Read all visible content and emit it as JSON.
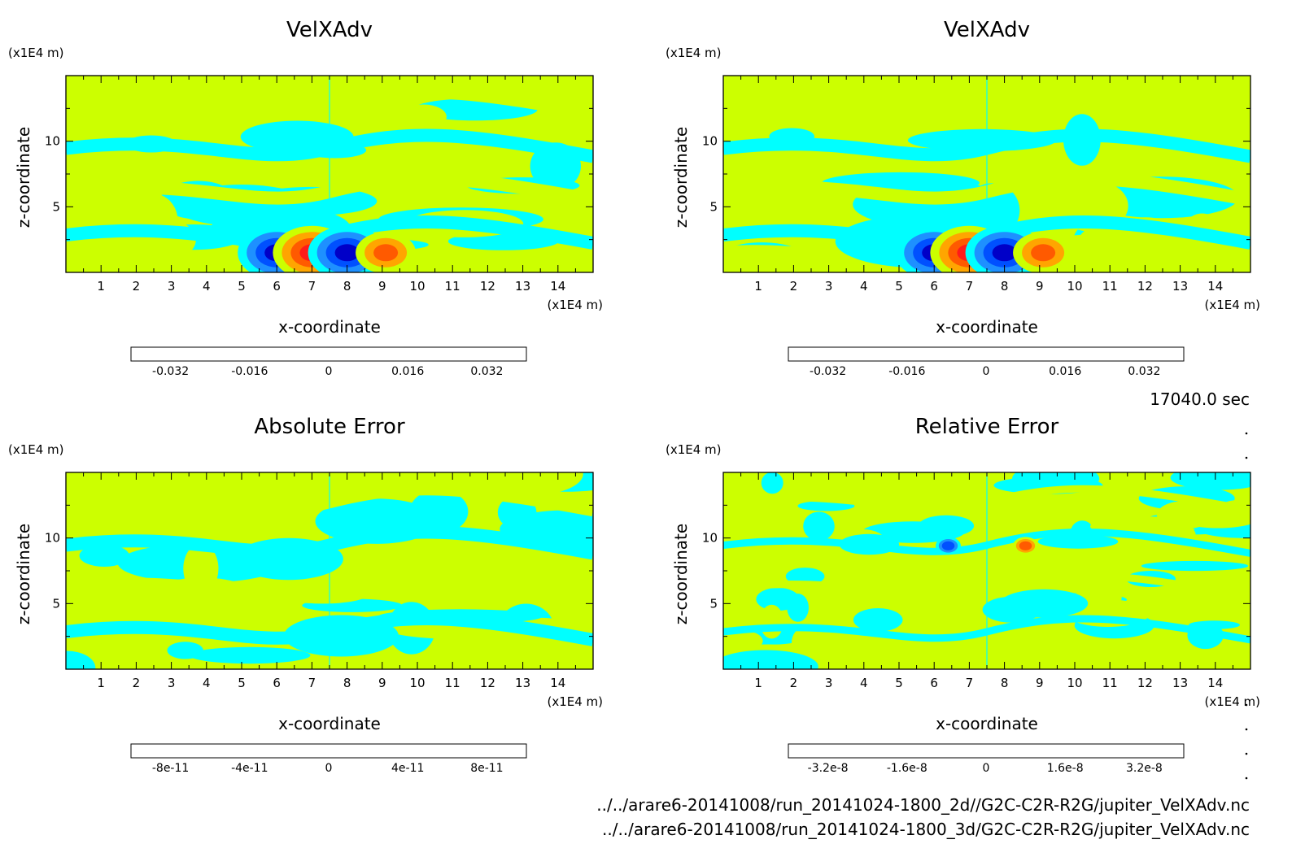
{
  "figure": {
    "time_label": "17040.0 sec",
    "files": [
      "../../arare6-20141008/run_20141024-1800_2d//G2C-C2R-R2G/jupiter_VelXAdv.nc",
      "../../arare6-20141008/run_20141024-1800_3d/G2C-C2R-R2G/jupiter_VelXAdv.nc"
    ],
    "colors": {
      "palette": [
        "#8000a8",
        "#0000c8",
        "#0050ff",
        "#1e90ff",
        "#00ffff",
        "#ccff00",
        "#ffa500",
        "#ff5a00",
        "#ff1a1a",
        "#ffb0b0"
      ],
      "background": "#ffffff"
    }
  },
  "chart_data": [
    {
      "type": "heatmap",
      "title": "VelXAdv",
      "xlabel": "x-coordinate",
      "ylabel": "z-coordinate",
      "x_unit": "(x1E4 m)",
      "y_unit": "(x1E4 m)",
      "xlim": [
        0,
        15
      ],
      "ylim": [
        0,
        15
      ],
      "x_ticks": [
        1,
        2,
        3,
        4,
        5,
        6,
        7,
        8,
        9,
        10,
        11,
        12,
        13,
        14
      ],
      "y_ticks": [
        5,
        10
      ],
      "colorbar": {
        "range": [
          -0.04,
          0.04
        ],
        "levels": 10,
        "tick_values": [
          -0.032,
          -0.016,
          0,
          0.016,
          0.032
        ],
        "tick_labels": [
          "-0.032",
          "-0.016",
          "0",
          "0.016",
          "0.032"
        ]
      },
      "features": [
        {
          "x": 6.0,
          "z": 1.5,
          "value": -0.028
        },
        {
          "x": 7.0,
          "z": 1.5,
          "value": 0.034
        },
        {
          "x": 8.0,
          "z": 1.5,
          "value": -0.034
        },
        {
          "x": 9.1,
          "z": 1.5,
          "value": 0.022
        }
      ]
    },
    {
      "type": "heatmap",
      "title": "VelXAdv",
      "xlabel": "x-coordinate",
      "ylabel": "z-coordinate",
      "x_unit": "(x1E4 m)",
      "y_unit": "(x1E4 m)",
      "xlim": [
        0,
        15
      ],
      "ylim": [
        0,
        15
      ],
      "x_ticks": [
        1,
        2,
        3,
        4,
        5,
        6,
        7,
        8,
        9,
        10,
        11,
        12,
        13,
        14
      ],
      "y_ticks": [
        5,
        10
      ],
      "colorbar": {
        "range": [
          -0.04,
          0.04
        ],
        "levels": 10,
        "tick_values": [
          -0.032,
          -0.016,
          0,
          0.016,
          0.032
        ],
        "tick_labels": [
          "-0.032",
          "-0.016",
          "0",
          "0.016",
          "0.032"
        ]
      },
      "features": [
        {
          "x": 6.0,
          "z": 1.5,
          "value": -0.028
        },
        {
          "x": 7.0,
          "z": 1.5,
          "value": 0.034
        },
        {
          "x": 8.0,
          "z": 1.5,
          "value": -0.034
        },
        {
          "x": 9.1,
          "z": 1.5,
          "value": 0.022
        }
      ]
    },
    {
      "type": "heatmap",
      "title": "Absolute Error",
      "xlabel": "x-coordinate",
      "ylabel": "z-coordinate",
      "x_unit": "(x1E4 m)",
      "y_unit": "(x1E4 m)",
      "xlim": [
        0,
        15
      ],
      "ylim": [
        0,
        15
      ],
      "x_ticks": [
        1,
        2,
        3,
        4,
        5,
        6,
        7,
        8,
        9,
        10,
        11,
        12,
        13,
        14
      ],
      "y_ticks": [
        5,
        10
      ],
      "colorbar": {
        "range": [
          -1e-10,
          1e-10
        ],
        "levels": 10,
        "tick_values": [
          -8e-11,
          -4e-11,
          0,
          4e-11,
          8e-11
        ],
        "tick_labels": [
          "-8e-11",
          "-4e-11",
          "0",
          "4e-11",
          "8e-11"
        ]
      },
      "features": []
    },
    {
      "type": "heatmap",
      "title": "Relative Error",
      "xlabel": "x-coordinate",
      "ylabel": "z-coordinate",
      "x_unit": "(x1E4 m)",
      "y_unit": "(x1E4 m)",
      "xlim": [
        0,
        15
      ],
      "ylim": [
        0,
        15
      ],
      "x_ticks": [
        1,
        2,
        3,
        4,
        5,
        6,
        7,
        8,
        9,
        10,
        11,
        12,
        13,
        14
      ],
      "y_ticks": [
        5,
        10
      ],
      "colorbar": {
        "range": [
          -4e-08,
          4e-08
        ],
        "levels": 10,
        "tick_values": [
          -3.2e-08,
          -1.6e-08,
          0,
          1.6e-08,
          3.2e-08
        ],
        "tick_labels": [
          "-3.2e-8",
          "-1.6e-8",
          "0",
          "1.6e-8",
          "3.2e-8"
        ]
      },
      "features": [
        {
          "x": 6.4,
          "z": 9.4,
          "value": -2.5e-08
        },
        {
          "x": 8.6,
          "z": 9.4,
          "value": 2.5e-08
        }
      ]
    }
  ]
}
